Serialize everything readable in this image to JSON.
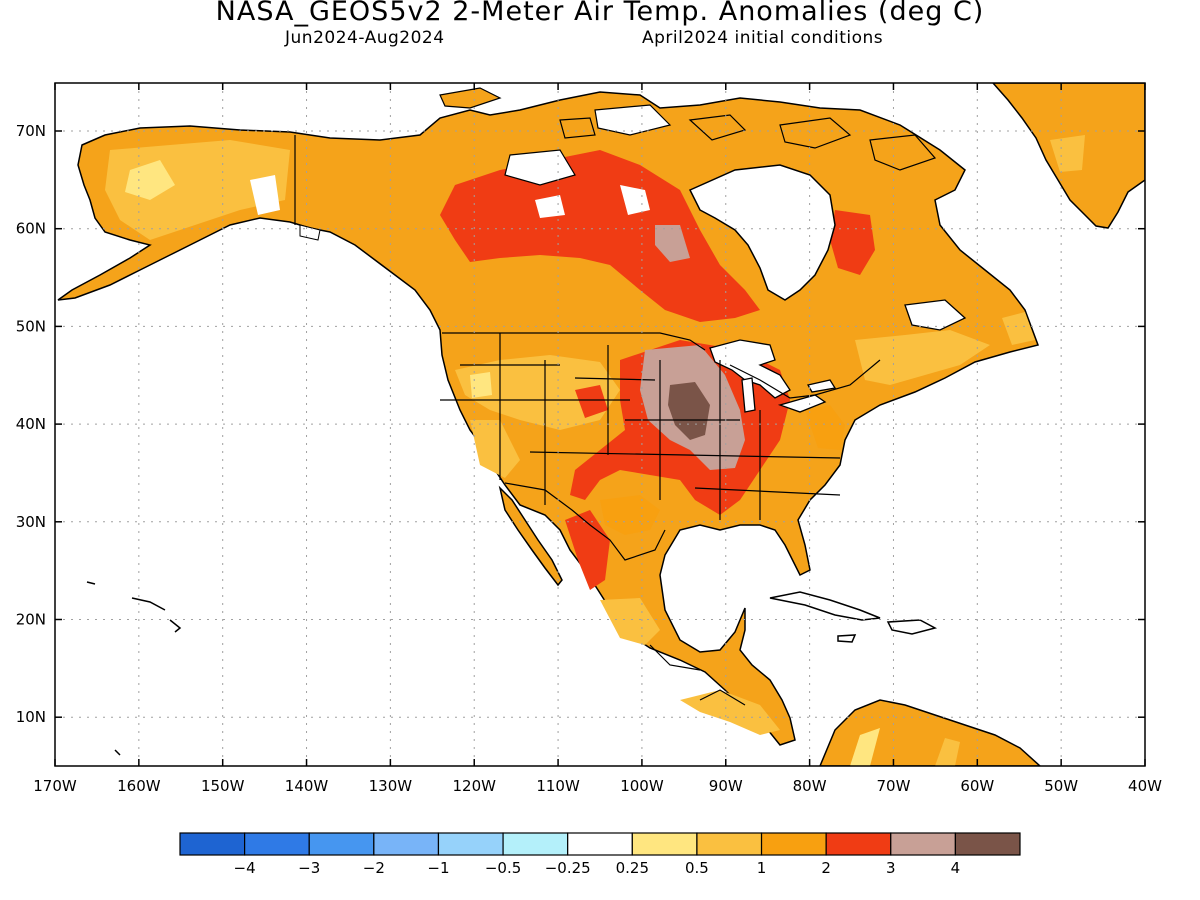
{
  "title": "NASA_GEOS5v2 2-Meter Air Temp. Anomalies (deg C)",
  "subtitle_left": "Jun2024-Aug2024",
  "subtitle_right": "April2024 initial conditions",
  "lat_labels": [
    "70N",
    "60N",
    "50N",
    "40N",
    "30N",
    "20N",
    "10N"
  ],
  "lon_labels": [
    "170W",
    "160W",
    "150W",
    "140W",
    "130W",
    "120W",
    "110W",
    "100W",
    "90W",
    "80W",
    "70W",
    "60W",
    "50W",
    "40W"
  ],
  "colorbar": {
    "colors": [
      "#1e64d2",
      "#2f7ae6",
      "#4696f0",
      "#78b4f8",
      "#96d2fa",
      "#b4f0fa",
      "#ffffff",
      "#ffe680",
      "#fac040",
      "#f8a010",
      "#f03c14",
      "#c8a096",
      "#7a5448"
    ],
    "labels": [
      "−4",
      "−3",
      "−2",
      "−1",
      "−0.5",
      "−0.25",
      "0.25",
      "0.5",
      "1",
      "2",
      "3",
      "4"
    ]
  },
  "colors": {
    "land": "#f5a31a",
    "ocean": "#ffffff",
    "coast": "#000000",
    "grid": "#a0a0a0"
  }
}
